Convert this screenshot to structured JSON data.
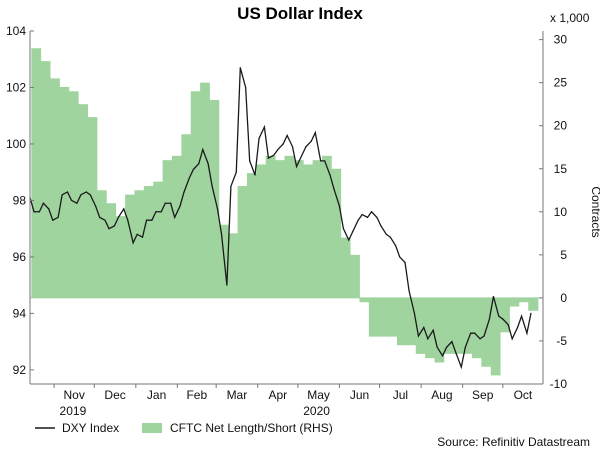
{
  "chart_data": {
    "type": "line",
    "title": "US Dollar Index",
    "left_axis": {
      "ylim": [
        91.5,
        104
      ],
      "ticks": [
        92,
        94,
        96,
        98,
        100,
        102,
        104
      ]
    },
    "right_axis": {
      "label": "Contracts",
      "multiplier_label": "x 1,000",
      "ylim": [
        -10,
        31
      ],
      "ticks": [
        -10,
        -5,
        0,
        5,
        10,
        15,
        20,
        25,
        30
      ]
    },
    "x_months": [
      "Nov",
      "Dec",
      "Jan",
      "Feb",
      "Mar",
      "Apr",
      "May",
      "Jun",
      "Jul",
      "Aug",
      "Sep",
      "Oct"
    ],
    "x_years": [
      "2019",
      "2020"
    ],
    "x_range": [
      "2019-10-14",
      "2020-10-31"
    ],
    "grid": false,
    "legend_position": "bottom-left",
    "source": "Source: Refinitiv Datastream",
    "series": [
      {
        "name": "DXY Index",
        "axis": "left",
        "color": "#1a1a1a",
        "x": [
          "2019-10-14",
          "2019-10-17",
          "2019-10-21",
          "2019-10-24",
          "2019-10-28",
          "2019-10-31",
          "2019-11-04",
          "2019-11-07",
          "2019-11-11",
          "2019-11-14",
          "2019-11-18",
          "2019-11-21",
          "2019-11-25",
          "2019-11-28",
          "2019-12-02",
          "2019-12-05",
          "2019-12-09",
          "2019-12-12",
          "2019-12-16",
          "2019-12-19",
          "2019-12-23",
          "2019-12-26",
          "2019-12-30",
          "2020-01-02",
          "2020-01-06",
          "2020-01-09",
          "2020-01-13",
          "2020-01-16",
          "2020-01-20",
          "2020-01-23",
          "2020-01-27",
          "2020-01-30",
          "2020-02-03",
          "2020-02-06",
          "2020-02-10",
          "2020-02-13",
          "2020-02-17",
          "2020-02-20",
          "2020-02-24",
          "2020-02-27",
          "2020-03-02",
          "2020-03-05",
          "2020-03-09",
          "2020-03-12",
          "2020-03-16",
          "2020-03-19",
          "2020-03-23",
          "2020-03-26",
          "2020-03-30",
          "2020-04-02",
          "2020-04-06",
          "2020-04-09",
          "2020-04-13",
          "2020-04-16",
          "2020-04-20",
          "2020-04-23",
          "2020-04-27",
          "2020-04-30",
          "2020-05-04",
          "2020-05-07",
          "2020-05-11",
          "2020-05-14",
          "2020-05-18",
          "2020-05-21",
          "2020-05-25",
          "2020-05-28",
          "2020-06-01",
          "2020-06-04",
          "2020-06-08",
          "2020-06-11",
          "2020-06-15",
          "2020-06-18",
          "2020-06-22",
          "2020-06-25",
          "2020-06-29",
          "2020-07-02",
          "2020-07-06",
          "2020-07-09",
          "2020-07-13",
          "2020-07-16",
          "2020-07-20",
          "2020-07-23",
          "2020-07-27",
          "2020-07-30",
          "2020-08-03",
          "2020-08-06",
          "2020-08-10",
          "2020-08-13",
          "2020-08-17",
          "2020-08-20",
          "2020-08-24",
          "2020-08-27",
          "2020-08-31",
          "2020-09-03",
          "2020-09-07",
          "2020-09-10",
          "2020-09-14",
          "2020-09-17",
          "2020-09-21",
          "2020-09-24",
          "2020-09-28",
          "2020-10-01",
          "2020-10-05",
          "2020-10-08",
          "2020-10-12",
          "2020-10-15",
          "2020-10-19",
          "2020-10-22"
        ],
        "values": [
          98.1,
          97.6,
          97.6,
          97.9,
          97.7,
          97.3,
          97.4,
          98.2,
          98.3,
          98.0,
          97.9,
          98.2,
          98.3,
          98.2,
          97.8,
          97.4,
          97.3,
          97.0,
          97.1,
          97.4,
          97.7,
          97.3,
          96.5,
          96.8,
          96.7,
          97.3,
          97.3,
          97.6,
          97.6,
          97.9,
          97.9,
          97.4,
          97.8,
          98.3,
          98.8,
          99.1,
          99.3,
          99.8,
          99.3,
          98.5,
          97.7,
          96.8,
          95.0,
          98.5,
          99.0,
          102.7,
          102.0,
          99.4,
          98.9,
          100.2,
          100.6,
          99.5,
          99.6,
          99.8,
          100.0,
          100.3,
          99.9,
          99.2,
          99.6,
          99.9,
          100.1,
          100.4,
          99.4,
          99.4,
          98.9,
          98.4,
          97.8,
          97.0,
          96.6,
          96.9,
          97.3,
          97.5,
          97.4,
          97.6,
          97.4,
          97.1,
          96.8,
          96.7,
          96.4,
          96.0,
          95.8,
          94.8,
          94.0,
          93.2,
          93.5,
          93.1,
          93.4,
          92.8,
          92.5,
          92.8,
          93.0,
          92.6,
          92.1,
          92.8,
          93.3,
          93.3,
          93.1,
          93.2,
          93.8,
          94.6,
          93.9,
          93.8,
          93.6,
          93.1,
          93.5,
          93.9,
          93.3,
          94.0
        ]
      },
      {
        "name": "CFTC Net Length/Short (RHS)",
        "axis": "right",
        "color": "#9fd49f",
        "x": [
          "2019-10-15",
          "2019-10-22",
          "2019-10-29",
          "2019-11-05",
          "2019-11-12",
          "2019-11-19",
          "2019-11-26",
          "2019-12-03",
          "2019-12-10",
          "2019-12-17",
          "2019-12-24",
          "2019-12-31",
          "2020-01-07",
          "2020-01-14",
          "2020-01-21",
          "2020-01-28",
          "2020-02-04",
          "2020-02-11",
          "2020-02-18",
          "2020-02-25",
          "2020-03-03",
          "2020-03-10",
          "2020-03-17",
          "2020-03-24",
          "2020-03-31",
          "2020-04-07",
          "2020-04-14",
          "2020-04-21",
          "2020-04-28",
          "2020-05-05",
          "2020-05-12",
          "2020-05-19",
          "2020-05-26",
          "2020-06-02",
          "2020-06-09",
          "2020-06-16",
          "2020-06-23",
          "2020-06-30",
          "2020-07-07",
          "2020-07-14",
          "2020-07-21",
          "2020-07-28",
          "2020-08-04",
          "2020-08-11",
          "2020-08-18",
          "2020-08-25",
          "2020-09-01",
          "2020-09-08",
          "2020-09-15",
          "2020-09-22",
          "2020-09-29",
          "2020-10-06",
          "2020-10-13",
          "2020-10-20"
        ],
        "values": [
          29,
          27.5,
          25.5,
          24.5,
          24,
          22.5,
          21,
          12.5,
          11,
          9.5,
          12,
          12.5,
          13,
          13.5,
          16,
          16.5,
          19,
          24,
          25,
          23,
          8.5,
          7.5,
          13,
          14.5,
          15.5,
          16.5,
          16,
          16.5,
          16,
          15.5,
          16,
          16.5,
          15,
          7,
          5,
          -0.5,
          -4.5,
          -4.5,
          -4.5,
          -5.5,
          -5.5,
          -6.5,
          -7,
          -7.5,
          -6.5,
          -6.5,
          -6.5,
          -7,
          -8,
          -9,
          -4,
          -1,
          -0.5,
          -1.5
        ]
      }
    ]
  }
}
